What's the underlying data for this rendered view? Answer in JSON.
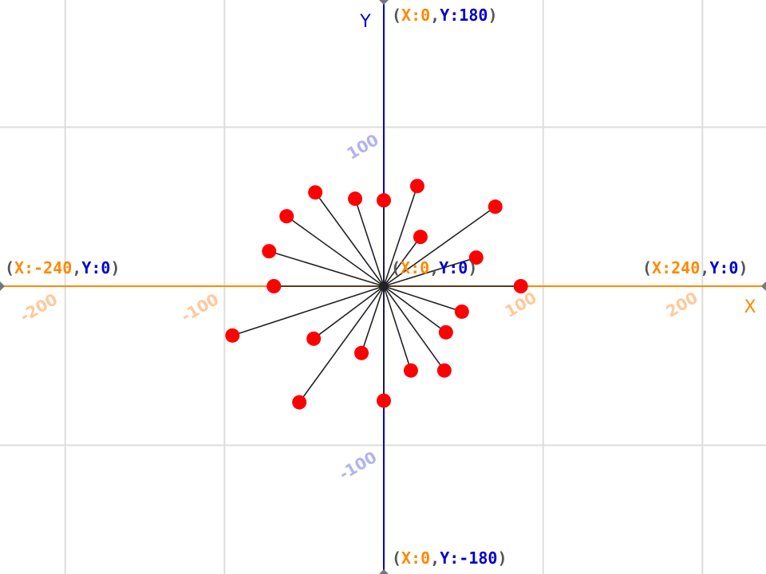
{
  "colors": {
    "x_axis": "#ff8800",
    "y_axis": "#0000cc",
    "grid": "#dddddd",
    "paren": "#555555",
    "x_tick": "#ffc99a",
    "y_tick": "#b3b3f0",
    "ray": "#222222",
    "dot": "#ff0000"
  },
  "axes": {
    "x_name": "X",
    "y_name": "Y",
    "x_range": [
      -240,
      240
    ],
    "y_range": [
      -180,
      180
    ],
    "x_ticks": [
      "-200",
      "-100",
      "100",
      "200"
    ],
    "y_ticks": [
      "100",
      "-100"
    ]
  },
  "corner_labels": {
    "top": {
      "x_part": "X:0",
      "y_part": "Y:180"
    },
    "bottom": {
      "x_part": "X:0",
      "y_part": "Y:-180"
    },
    "left": {
      "x_part": "X:-240",
      "y_part": "Y:0"
    },
    "right": {
      "x_part": "X:240",
      "y_part": "Y:0"
    },
    "origin": {
      "x_part": "X:0",
      "y_part": "Y:0"
    }
  },
  "points": [
    [
      -43,
      59
    ],
    [
      -18,
      55
    ],
    [
      0,
      54
    ],
    [
      21,
      63
    ],
    [
      70,
      50
    ],
    [
      -61,
      44
    ],
    [
      23,
      31
    ],
    [
      58,
      18
    ],
    [
      -72,
      22
    ],
    [
      -69,
      0
    ],
    [
      86,
      0
    ],
    [
      49,
      -16
    ],
    [
      39,
      -29
    ],
    [
      -95,
      -31
    ],
    [
      -44,
      -33
    ],
    [
      -14,
      -42
    ],
    [
      17,
      -53
    ],
    [
      38,
      -53
    ],
    [
      -53,
      -73
    ],
    [
      0,
      -72
    ]
  ]
}
